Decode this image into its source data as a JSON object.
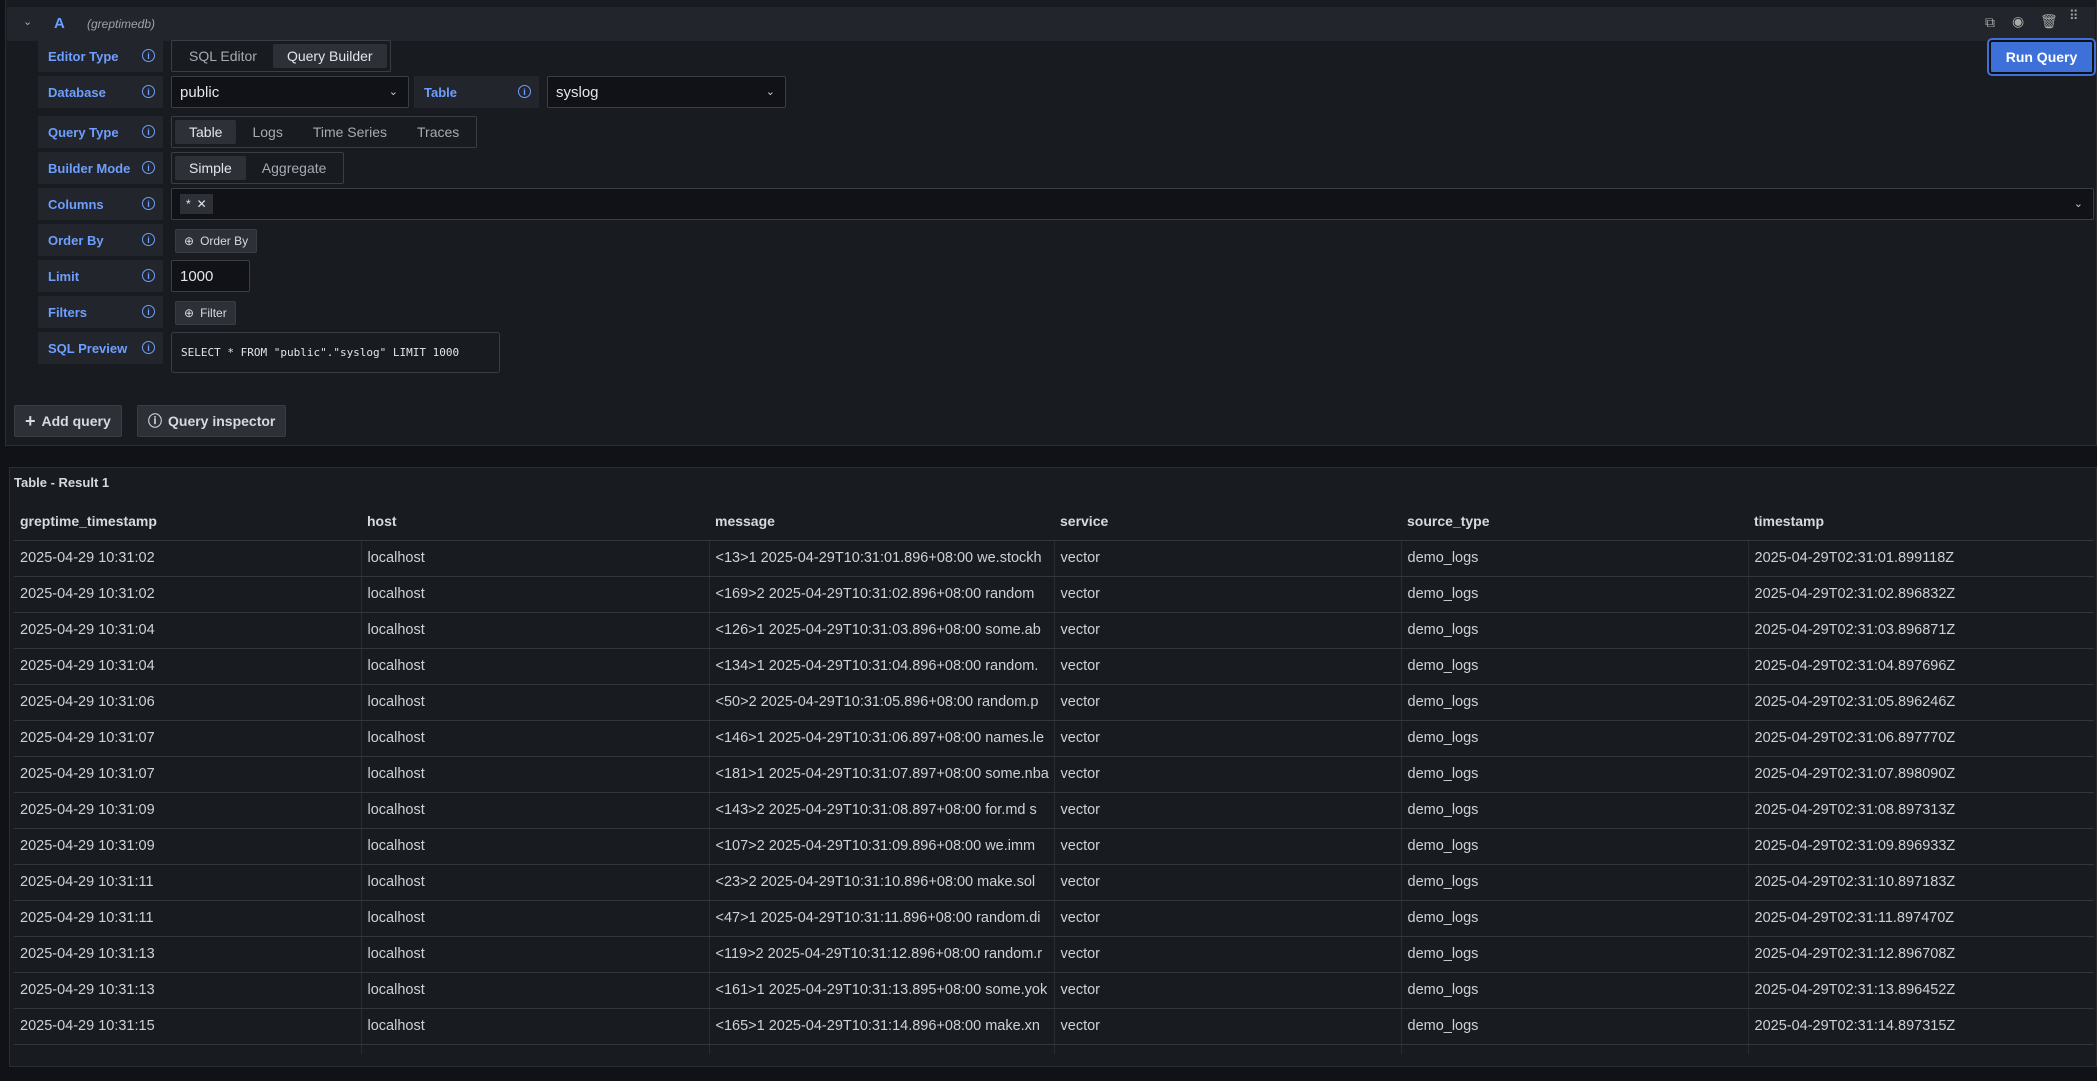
{
  "query": {
    "ref": "A",
    "datasource": "(greptimedb)",
    "run_label": "Run Query",
    "rows": {
      "editor_type": "Editor Type",
      "database": "Database",
      "table": "Table",
      "query_type": "Query Type",
      "builder_mode": "Builder Mode",
      "columns": "Columns",
      "order_by": "Order By",
      "limit": "Limit",
      "filters": "Filters",
      "sql_preview": "SQL Preview"
    },
    "editor_options": [
      "SQL Editor",
      "Query Builder"
    ],
    "editor_selected": "Query Builder",
    "database_value": "public",
    "table_value": "syslog",
    "query_types": [
      "Table",
      "Logs",
      "Time Series",
      "Traces"
    ],
    "builder_modes": [
      "Simple",
      "Aggregate"
    ],
    "column_chip": "*",
    "order_by_button": "Order By",
    "limit_value": "1000",
    "filter_button": "Filter",
    "sql": "SELECT * FROM \"public\".\"syslog\" LIMIT 1000",
    "add_query": "Add query",
    "query_inspector": "Query inspector"
  },
  "result": {
    "title": "Table - Result 1",
    "columns": [
      "greptime_timestamp",
      "host",
      "message",
      "service",
      "source_type",
      "timestamp"
    ],
    "rows": [
      [
        "2025-04-29 10:31:02",
        "localhost",
        "<13>1 2025-04-29T10:31:01.896+08:00 we.stockh",
        "vector",
        "demo_logs",
        "2025-04-29T02:31:01.899118Z"
      ],
      [
        "2025-04-29 10:31:02",
        "localhost",
        "<169>2 2025-04-29T10:31:02.896+08:00 random",
        "vector",
        "demo_logs",
        "2025-04-29T02:31:02.896832Z"
      ],
      [
        "2025-04-29 10:31:04",
        "localhost",
        "<126>1 2025-04-29T10:31:03.896+08:00 some.ab",
        "vector",
        "demo_logs",
        "2025-04-29T02:31:03.896871Z"
      ],
      [
        "2025-04-29 10:31:04",
        "localhost",
        "<134>1 2025-04-29T10:31:04.896+08:00 random.",
        "vector",
        "demo_logs",
        "2025-04-29T02:31:04.897696Z"
      ],
      [
        "2025-04-29 10:31:06",
        "localhost",
        "<50>2 2025-04-29T10:31:05.896+08:00 random.p",
        "vector",
        "demo_logs",
        "2025-04-29T02:31:05.896246Z"
      ],
      [
        "2025-04-29 10:31:07",
        "localhost",
        "<146>1 2025-04-29T10:31:06.897+08:00 names.le",
        "vector",
        "demo_logs",
        "2025-04-29T02:31:06.897770Z"
      ],
      [
        "2025-04-29 10:31:07",
        "localhost",
        "<181>1 2025-04-29T10:31:07.897+08:00 some.nba",
        "vector",
        "demo_logs",
        "2025-04-29T02:31:07.898090Z"
      ],
      [
        "2025-04-29 10:31:09",
        "localhost",
        "<143>2 2025-04-29T10:31:08.897+08:00 for.md s",
        "vector",
        "demo_logs",
        "2025-04-29T02:31:08.897313Z"
      ],
      [
        "2025-04-29 10:31:09",
        "localhost",
        "<107>2 2025-04-29T10:31:09.896+08:00 we.imm",
        "vector",
        "demo_logs",
        "2025-04-29T02:31:09.896933Z"
      ],
      [
        "2025-04-29 10:31:11",
        "localhost",
        "<23>2 2025-04-29T10:31:10.896+08:00 make.sol",
        "vector",
        "demo_logs",
        "2025-04-29T02:31:10.897183Z"
      ],
      [
        "2025-04-29 10:31:11",
        "localhost",
        "<47>1 2025-04-29T10:31:11.896+08:00 random.di",
        "vector",
        "demo_logs",
        "2025-04-29T02:31:11.897470Z"
      ],
      [
        "2025-04-29 10:31:13",
        "localhost",
        "<119>2 2025-04-29T10:31:12.896+08:00 random.r",
        "vector",
        "demo_logs",
        "2025-04-29T02:31:12.896708Z"
      ],
      [
        "2025-04-29 10:31:13",
        "localhost",
        "<161>1 2025-04-29T10:31:13.895+08:00 some.yok",
        "vector",
        "demo_logs",
        "2025-04-29T02:31:13.896452Z"
      ],
      [
        "2025-04-29 10:31:15",
        "localhost",
        "<165>1 2025-04-29T10:31:14.896+08:00 make.xn",
        "vector",
        "demo_logs",
        "2025-04-29T02:31:14.897315Z"
      ]
    ]
  },
  "colors": {
    "accent": "#3d71d9",
    "label": "#6e9fff"
  }
}
